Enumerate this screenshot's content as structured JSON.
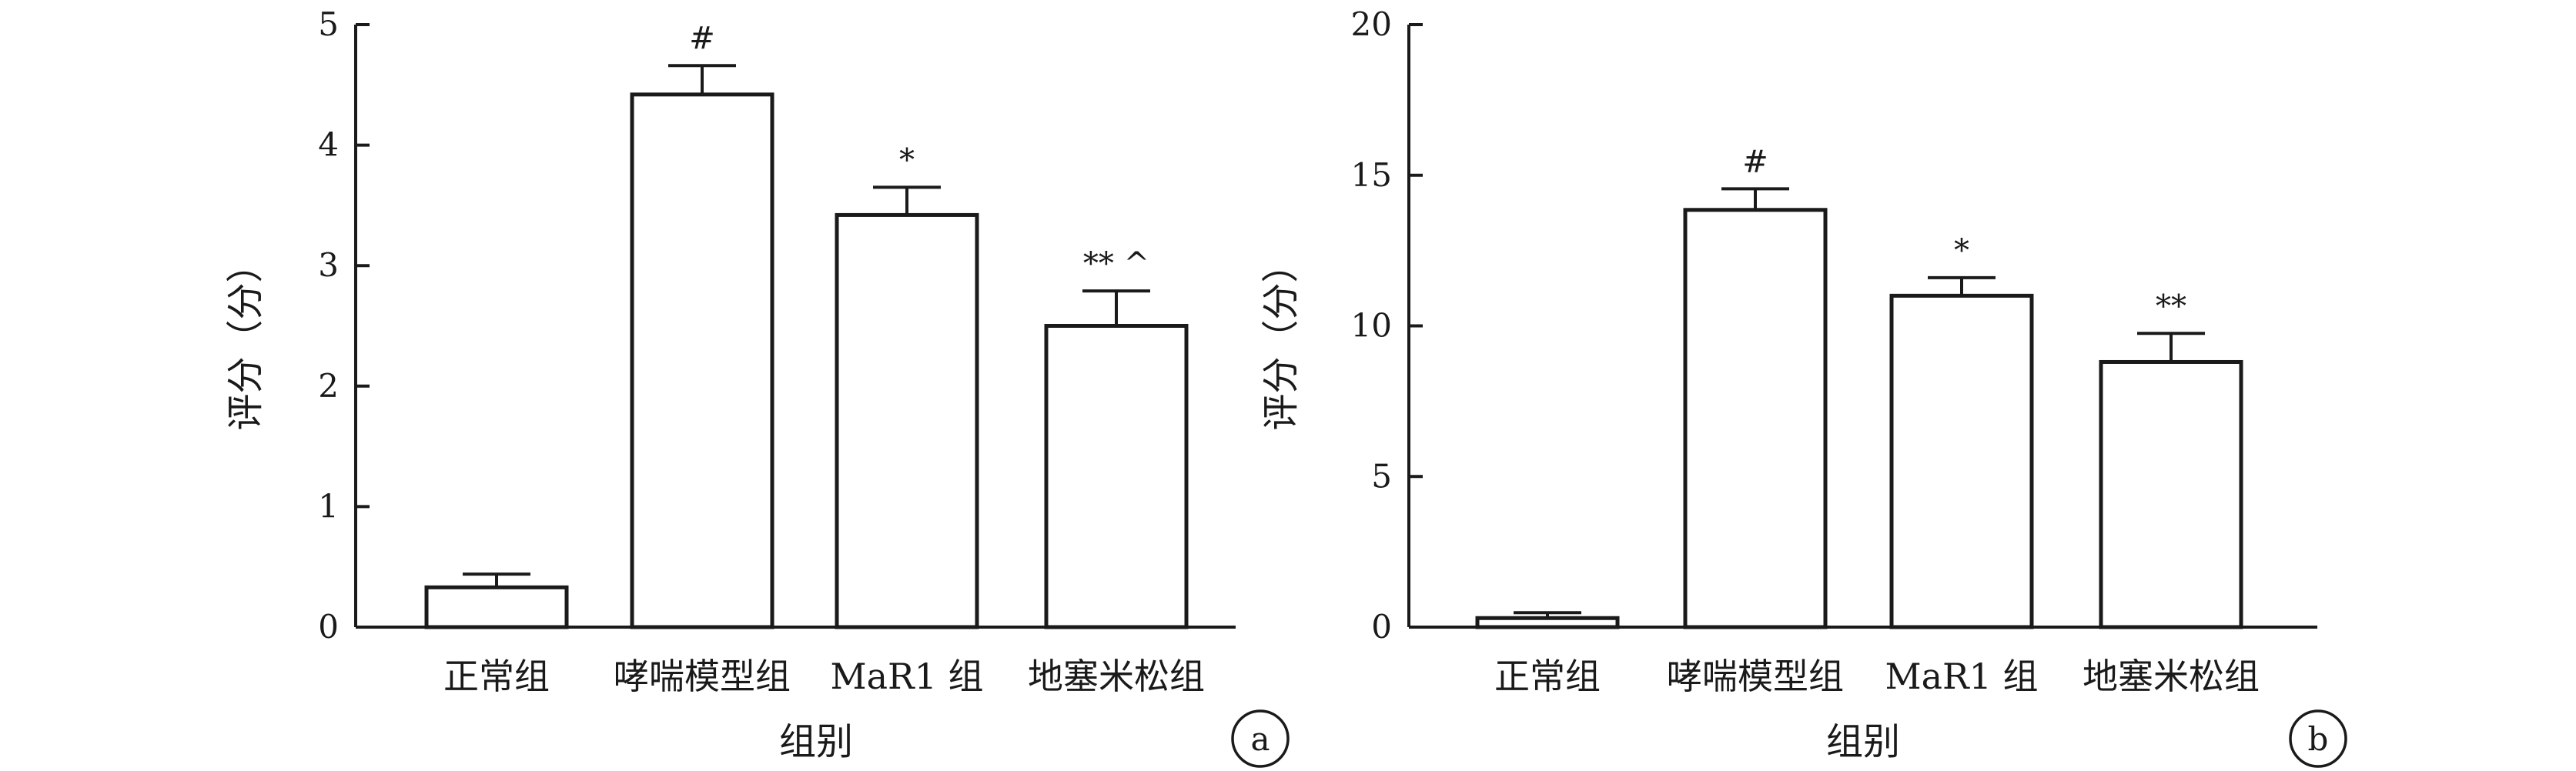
{
  "chart_data": [
    {
      "panel": "a",
      "type": "bar",
      "ylabel": "评分（分）",
      "xlabel": "组别",
      "ylim": [
        0,
        5
      ],
      "yticks": [
        0,
        1,
        2,
        3,
        4,
        5
      ],
      "categories": [
        "正常组",
        "哮喘模型组",
        "MaR1 组",
        "地塞米松组"
      ],
      "values": [
        0.33,
        4.42,
        3.42,
        2.5
      ],
      "errors": [
        0.11,
        0.24,
        0.23,
        0.29
      ],
      "significance": [
        "",
        "#",
        "*",
        "** ^"
      ]
    },
    {
      "panel": "b",
      "type": "bar",
      "ylabel": "评分（分）",
      "xlabel": "组别",
      "ylim": [
        0,
        20
      ],
      "yticks": [
        0,
        5,
        10,
        15,
        20
      ],
      "categories": [
        "正常组",
        "哮喘模型组",
        "MaR1 组",
        "地塞米松组"
      ],
      "values": [
        0.3,
        13.85,
        11.0,
        8.8
      ],
      "errors": [
        0.18,
        0.7,
        0.6,
        0.95
      ],
      "significance": [
        "",
        "#",
        "*",
        "**"
      ]
    }
  ]
}
